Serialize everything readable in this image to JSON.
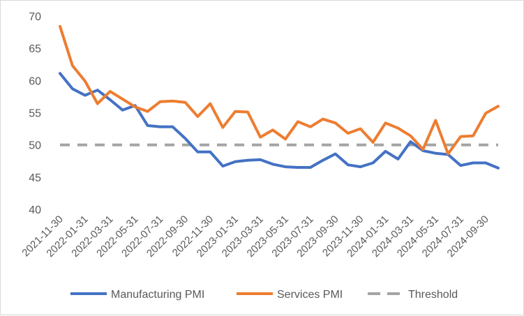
{
  "chart_data": {
    "type": "line",
    "title": "",
    "xlabel": "",
    "ylabel": "",
    "ylim": [
      40,
      70
    ],
    "yticks": [
      40,
      45,
      50,
      55,
      60,
      65,
      70
    ],
    "x": [
      "2021-11-30",
      "2021-12-31",
      "2022-01-31",
      "2022-02-28",
      "2022-03-31",
      "2022-04-30",
      "2022-05-31",
      "2022-06-30",
      "2022-07-31",
      "2022-08-31",
      "2022-09-30",
      "2022-10-31",
      "2022-11-30",
      "2022-12-31",
      "2023-01-31",
      "2023-02-28",
      "2023-03-31",
      "2023-04-30",
      "2023-05-31",
      "2023-06-30",
      "2023-07-31",
      "2023-08-31",
      "2023-09-30",
      "2023-10-31",
      "2023-11-30",
      "2023-12-31",
      "2024-01-31",
      "2024-02-29",
      "2024-03-31",
      "2024-04-30",
      "2024-05-31",
      "2024-06-30",
      "2024-07-31",
      "2024-08-31",
      "2024-09-30",
      "2024-10-31"
    ],
    "x_tick_labels": [
      "2021-11-30",
      "2022-01-31",
      "2022-03-31",
      "2022-05-31",
      "2022-07-31",
      "2022-09-30",
      "2022-11-30",
      "2023-01-31",
      "2023-03-31",
      "2023-05-31",
      "2023-07-31",
      "2023-09-30",
      "2023-11-30",
      "2024-01-31",
      "2024-03-31",
      "2024-05-31",
      "2024-07-31",
      "2024-09-30"
    ],
    "series": [
      {
        "name": "Manufacturing PMI",
        "color": "#4472c4",
        "dash": "",
        "values": [
          61.1,
          58.7,
          57.7,
          58.5,
          57.0,
          55.4,
          56.1,
          53.0,
          52.8,
          52.8,
          51.0,
          48.9,
          48.9,
          46.7,
          47.4,
          47.6,
          47.7,
          47.0,
          46.6,
          46.5,
          46.5,
          47.6,
          48.6,
          46.9,
          46.6,
          47.2,
          49.0,
          47.8,
          50.5,
          49.1,
          48.7,
          48.5,
          46.8,
          47.2,
          47.2,
          46.4
        ]
      },
      {
        "name": "Services PMI",
        "color": "#ed7d31",
        "dash": "",
        "values": [
          68.4,
          62.3,
          59.9,
          56.4,
          58.3,
          57.1,
          55.9,
          55.2,
          56.7,
          56.8,
          56.6,
          54.4,
          56.4,
          52.7,
          55.2,
          55.1,
          51.2,
          52.3,
          50.9,
          53.6,
          52.8,
          54.0,
          53.4,
          51.8,
          52.5,
          50.4,
          53.4,
          52.6,
          51.4,
          49.3,
          53.8,
          48.6,
          51.3,
          51.4,
          54.9,
          56.0
        ]
      },
      {
        "name": "Threshold",
        "color": "#a5a5a5",
        "dash": "14,11",
        "values": [
          50,
          50,
          50,
          50,
          50,
          50,
          50,
          50,
          50,
          50,
          50,
          50,
          50,
          50,
          50,
          50,
          50,
          50,
          50,
          50,
          50,
          50,
          50,
          50,
          50,
          50,
          50,
          50,
          50,
          50,
          50,
          50,
          50,
          50,
          50,
          50
        ]
      }
    ],
    "legend": "bottom",
    "grid": false
  }
}
